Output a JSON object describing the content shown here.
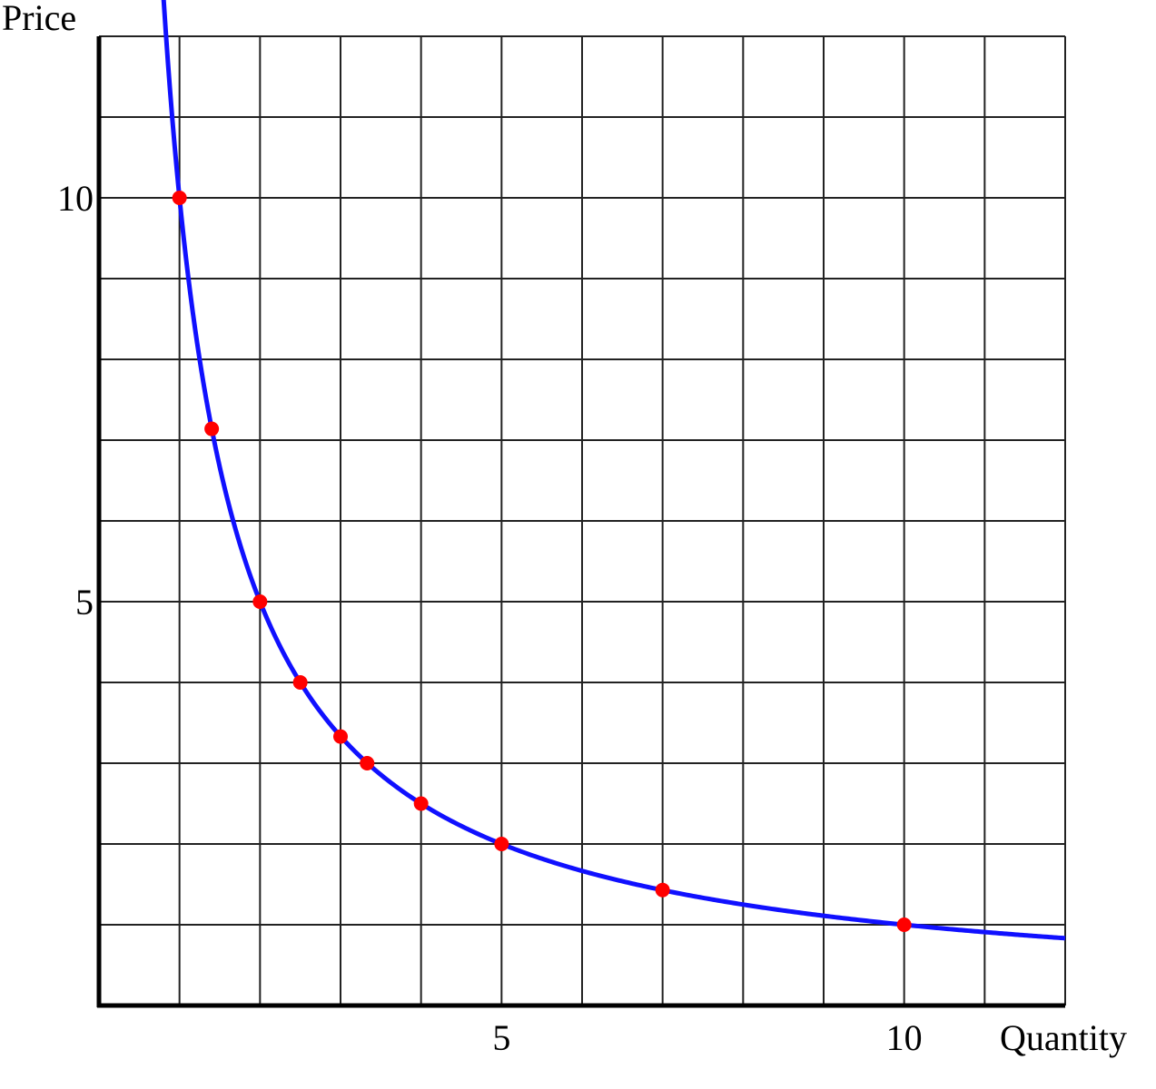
{
  "chart_data": {
    "type": "line",
    "xlabel": "Quantity",
    "ylabel": "Price",
    "xlim": [
      0,
      12
    ],
    "ylim": [
      0,
      12
    ],
    "x_ticks": [
      5,
      10
    ],
    "y_ticks": [
      5,
      10
    ],
    "grid": true,
    "series": [
      {
        "curve": "y = 10 / x",
        "x_range": [
          0.8,
          12
        ],
        "line_color": "#1010ff",
        "points": [
          {
            "x": 1,
            "y": 10
          },
          {
            "x": 1.4,
            "y": 7.14
          },
          {
            "x": 2,
            "y": 5
          },
          {
            "x": 2.5,
            "y": 4
          },
          {
            "x": 3,
            "y": 3.33
          },
          {
            "x": 3.33,
            "y": 3
          },
          {
            "x": 4,
            "y": 2.5
          },
          {
            "x": 5,
            "y": 2
          },
          {
            "x": 7,
            "y": 1.43
          },
          {
            "x": 10,
            "y": 1
          }
        ],
        "point_color": "#ff0000"
      }
    ]
  }
}
